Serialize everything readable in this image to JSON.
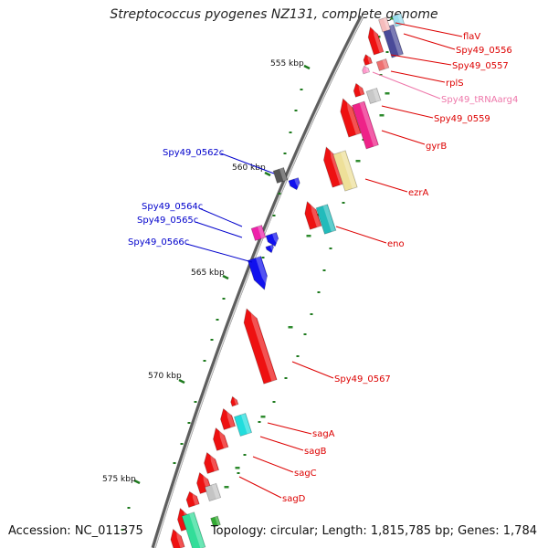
{
  "title": "Streptococcus pyogenes NZ131, complete genome",
  "footer": {
    "accession_label": "Accession: NC_011375",
    "summary": "Topology: circular; Length: 1,815,785 bp; Genes: 1,784"
  },
  "colors": {
    "backbone": "#7a7a7a",
    "forward_label": "#dd0000",
    "reverse_label": "#0000cc",
    "trna_label": "#ee77aa",
    "tick": "#1e7a1e"
  },
  "ticks": [
    {
      "label": "555 kbp"
    },
    {
      "label": "560 kbp"
    },
    {
      "label": "565 kbp"
    },
    {
      "label": "570 kbp"
    },
    {
      "label": "575 kbp"
    }
  ],
  "gene_labels": [
    {
      "text": "flaV",
      "strand": "forward"
    },
    {
      "text": "Spy49_0556",
      "strand": "forward"
    },
    {
      "text": "Spy49_0557",
      "strand": "forward"
    },
    {
      "text": "rplS",
      "strand": "forward"
    },
    {
      "text": "Spy49_tRNAarg4",
      "strand": "trna"
    },
    {
      "text": "Spy49_0559",
      "strand": "forward"
    },
    {
      "text": "gyrB",
      "strand": "forward"
    },
    {
      "text": "ezrA",
      "strand": "forward"
    },
    {
      "text": "eno",
      "strand": "forward"
    },
    {
      "text": "Spy49_0567",
      "strand": "forward"
    },
    {
      "text": "sagA",
      "strand": "forward"
    },
    {
      "text": "sagB",
      "strand": "forward"
    },
    {
      "text": "sagC",
      "strand": "forward"
    },
    {
      "text": "sagD",
      "strand": "forward"
    },
    {
      "text": "Spy49_0562c",
      "strand": "reverse"
    },
    {
      "text": "Spy49_0564c",
      "strand": "reverse"
    },
    {
      "text": "Spy49_0565c",
      "strand": "reverse"
    },
    {
      "text": "Spy49_0566c",
      "strand": "reverse"
    }
  ]
}
